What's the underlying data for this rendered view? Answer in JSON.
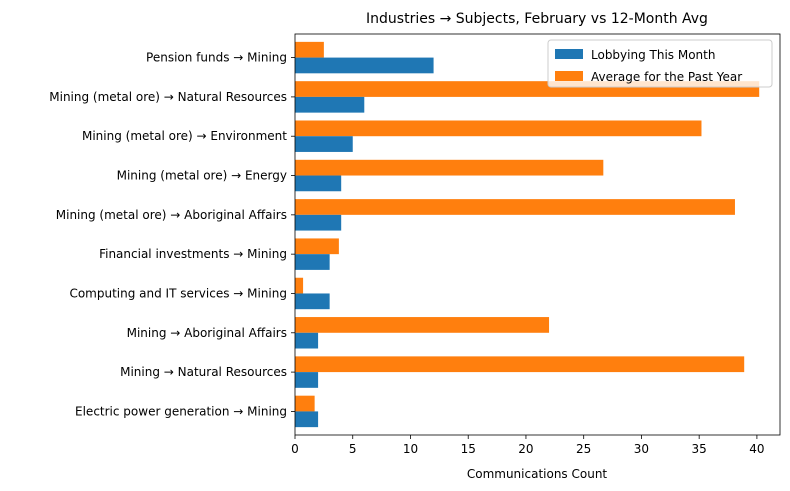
{
  "chart_data": {
    "type": "bar",
    "orientation": "horizontal",
    "title": "Industries → Subjects, February vs 12-Month Avg",
    "xlabel": "Communications Count",
    "ylabel": "",
    "xlim": [
      0,
      42
    ],
    "xticks": [
      0,
      5,
      10,
      15,
      20,
      25,
      30,
      35,
      40
    ],
    "grid": false,
    "legend_position": "top-right",
    "categories": [
      "Pension funds → Mining",
      "Mining (metal ore) → Natural Resources",
      "Mining (metal ore) → Environment",
      "Mining (metal ore) → Energy",
      "Mining (metal ore) → Aboriginal Affairs",
      "Financial investments → Mining",
      "Computing and IT services → Mining",
      "Mining → Aboriginal Affairs",
      "Mining → Natural Resources",
      "Electric power generation → Mining"
    ],
    "series": [
      {
        "name": "Lobbying This Month",
        "color": "#1f77b4",
        "values": [
          12,
          6,
          5,
          4,
          4,
          3,
          3,
          2,
          2,
          2
        ]
      },
      {
        "name": "Average for the Past Year",
        "color": "#ff7f0e",
        "values": [
          2.5,
          40.2,
          35.2,
          26.7,
          38.1,
          3.8,
          0.7,
          22.0,
          38.9,
          1.7
        ]
      }
    ]
  }
}
